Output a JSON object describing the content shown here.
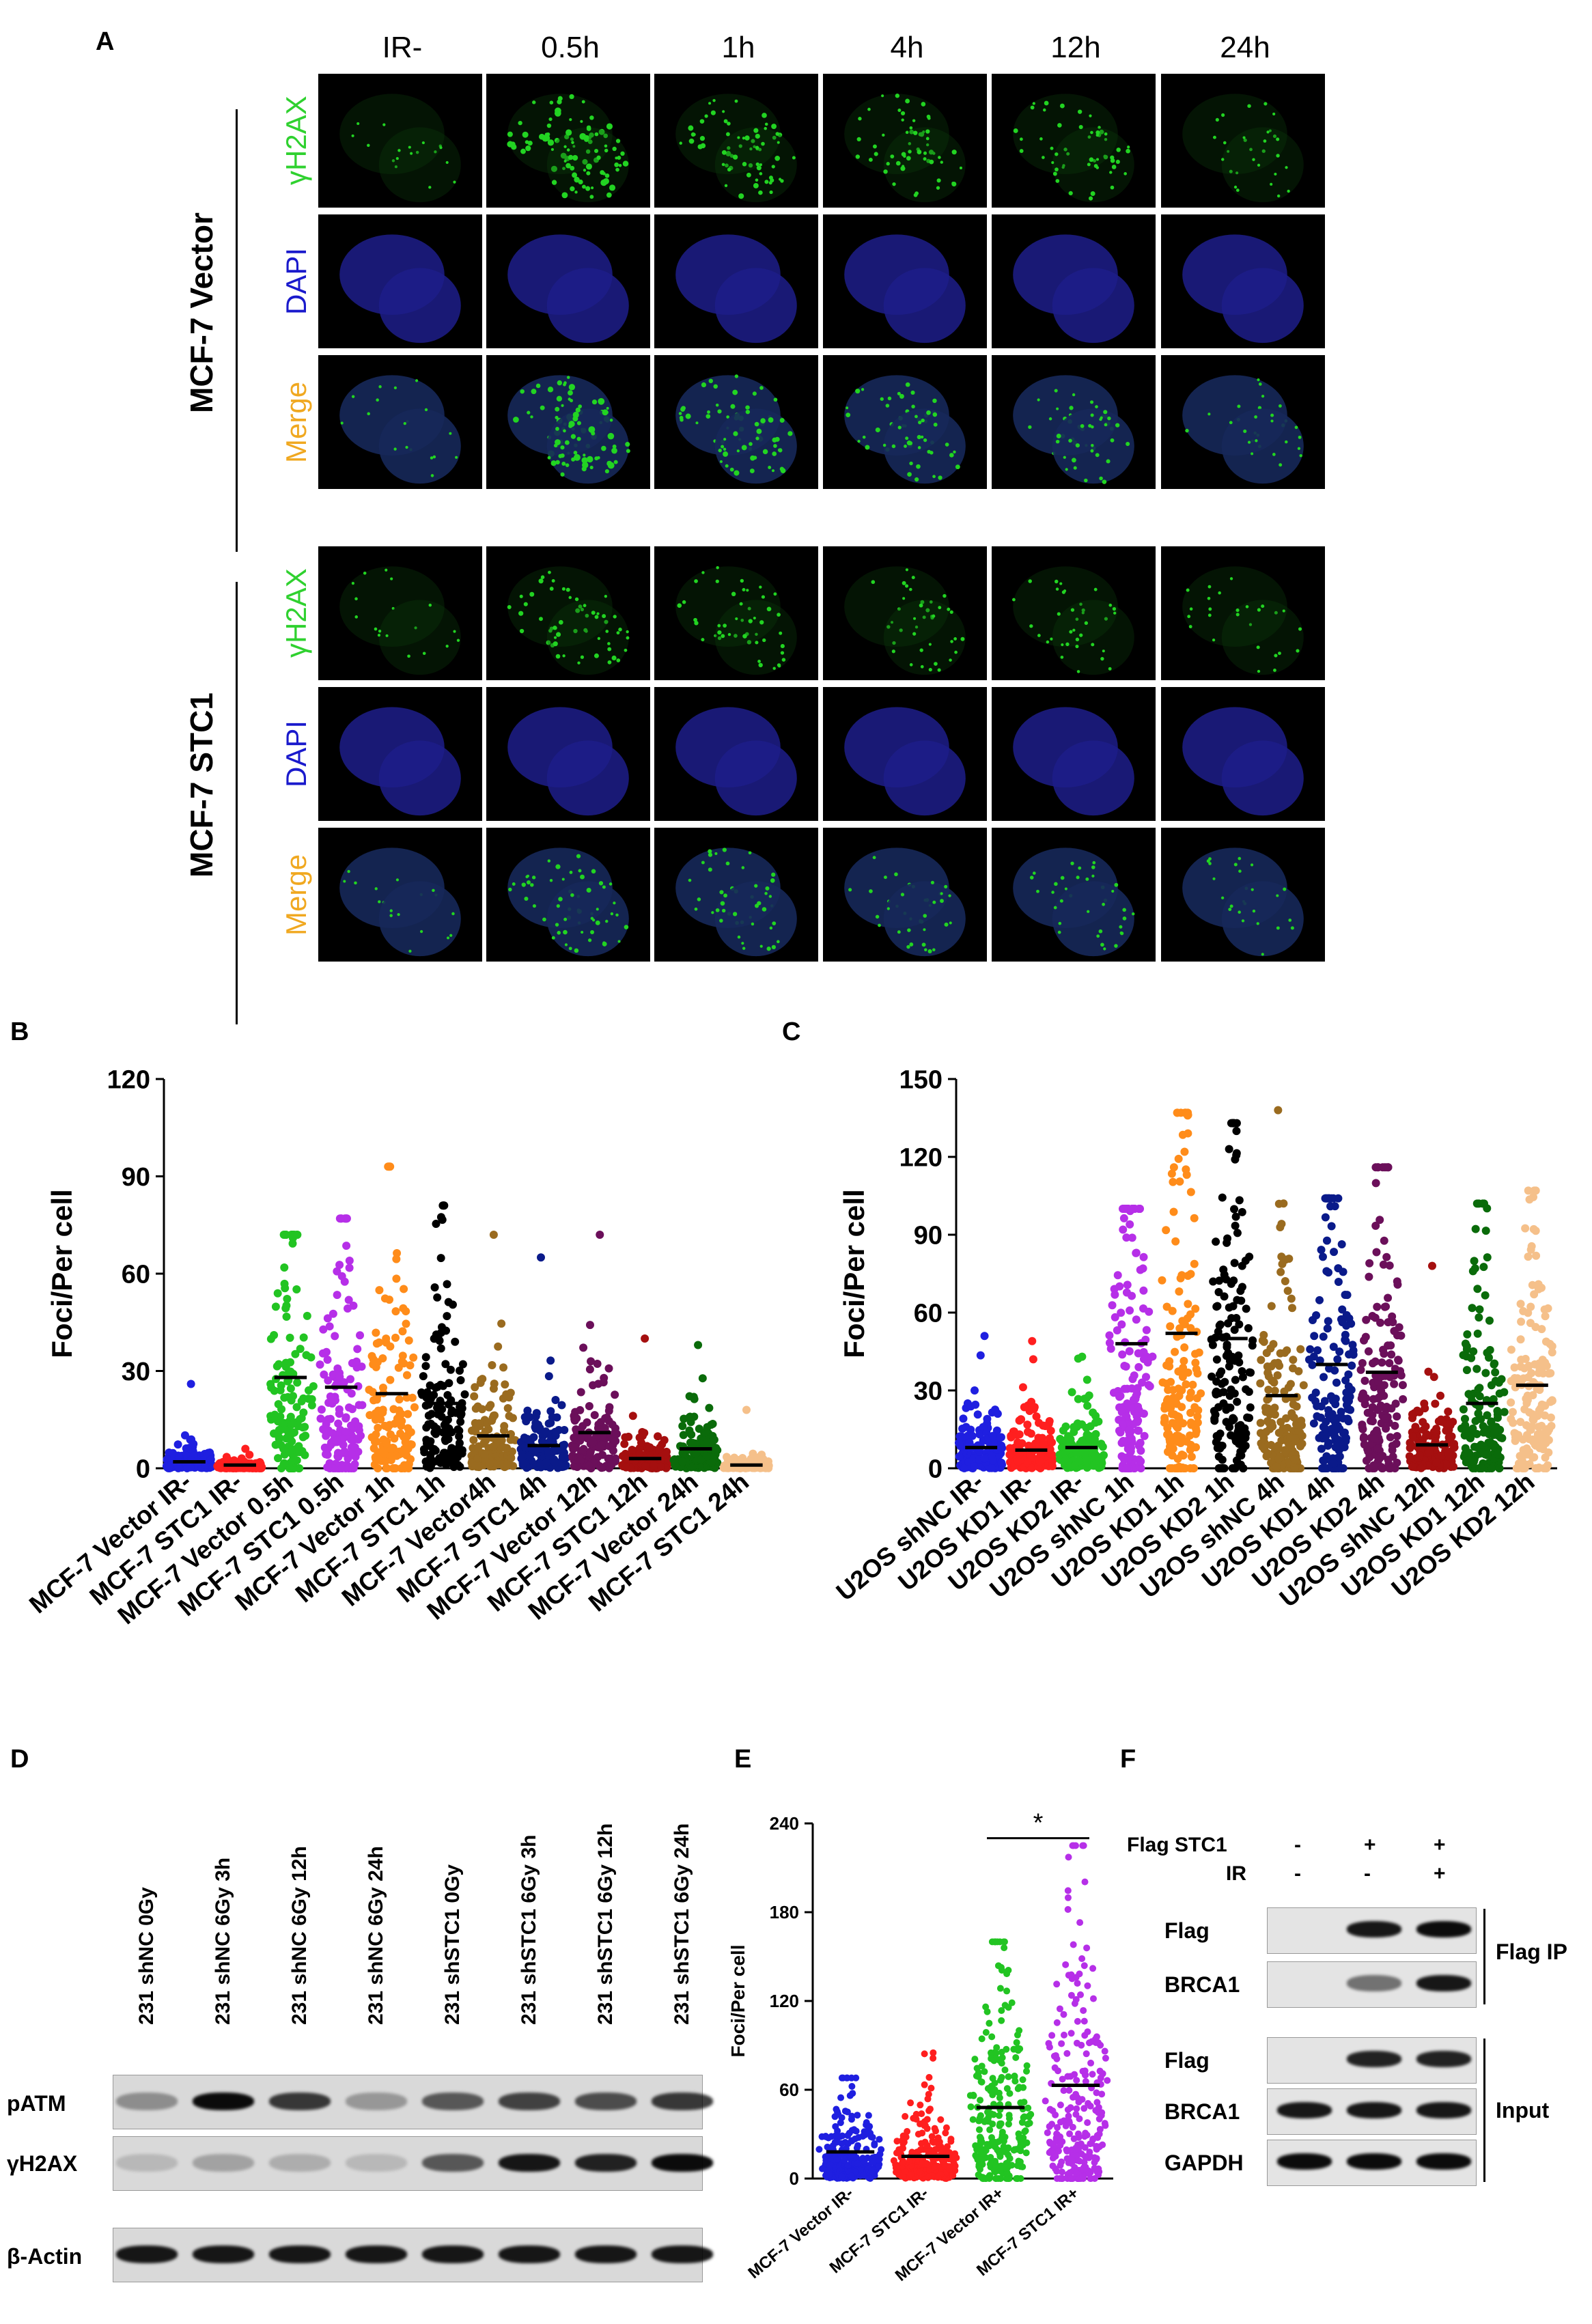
{
  "panel_letters": {
    "a": "A",
    "b": "B",
    "c": "C",
    "d": "D",
    "e": "E",
    "f": "F"
  },
  "panel_a": {
    "columns": [
      "IR-",
      "0.5h",
      "1h",
      "4h",
      "12h",
      "24h"
    ],
    "groups": [
      {
        "name": "MCF-7 Vector",
        "rows": [
          "γH2AX",
          "DAPI",
          "Merge"
        ]
      },
      {
        "name": "MCF-7 STC1",
        "rows": [
          "γH2AX",
          "DAPI",
          "Merge"
        ]
      }
    ],
    "row_colors": {
      "γH2AX": "#2fd12f",
      "DAPI": "#1a1acc",
      "Merge": "#f0a820"
    },
    "cell_colors": {
      "gfp": "#22d422",
      "dapi": "#1d1d8a",
      "bg": "#000000"
    }
  },
  "chart_data": [
    {
      "type": "scatter",
      "panel": "B",
      "ylabel": "Foci/Per cell",
      "ylim": [
        0,
        120
      ],
      "yticks": [
        0,
        30,
        60,
        90,
        120
      ],
      "categories": [
        "MCF-7 Vector IR-",
        "MCF-7 STC1 IR-",
        "MCF-7 Vector 0.5h",
        "MCF-7 STC1 0.5h",
        "MCF-7 Vector 1h",
        "MCF-7 STC1 1h",
        "MCF-7 Vector4h",
        "MCF-7 STC1 4h",
        "MCF-7 Vector 12h",
        "MCF-7 STC1 12h",
        "MCF-7 Vector 24h",
        "MCF-7 STC1 24h"
      ],
      "colors": [
        "#1f1fe0",
        "#ff1f1f",
        "#22c422",
        "#b62fe8",
        "#ff8c1a",
        "#000000",
        "#9a6b1f",
        "#0a1a8a",
        "#6b0f5a",
        "#a50f0f",
        "#0a6b0a",
        "#f5c08a"
      ],
      "means": [
        2,
        1,
        28,
        25,
        23,
        20,
        10,
        7,
        11,
        3,
        6,
        1
      ],
      "maxima": [
        26,
        6,
        72,
        77,
        93,
        81,
        72,
        65,
        72,
        40,
        38,
        18
      ]
    },
    {
      "type": "scatter",
      "panel": "C",
      "ylabel": "Foci/Per cell",
      "ylim": [
        0,
        150
      ],
      "yticks": [
        0,
        30,
        60,
        90,
        120,
        150
      ],
      "categories": [
        "U2OS shNC IR-",
        "U2OS KD1 IR-",
        "U2OS KD2 IR-",
        "U2OS shNC 1h",
        "U2OS KD1 1h",
        "U2OS KD2 1h",
        "U2OS shNC 4h",
        "U2OS KD1 4h",
        "U2OS KD2 4h",
        "U2OS shNC 12h",
        "U2OS KD1 12h",
        "U2OS KD2 12h"
      ],
      "colors": [
        "#1f1fe0",
        "#ff1f1f",
        "#22c422",
        "#b62fe8",
        "#ff8c1a",
        "#000000",
        "#9a6b1f",
        "#0a1a8a",
        "#6b0f5a",
        "#a50f0f",
        "#0a6b0a",
        "#f5c08a"
      ],
      "means": [
        8,
        7,
        8,
        48,
        52,
        50,
        28,
        40,
        37,
        9,
        25,
        32
      ],
      "maxima": [
        51,
        49,
        43,
        100,
        137,
        133,
        138,
        104,
        116,
        78,
        102,
        107
      ]
    },
    {
      "type": "scatter",
      "panel": "E",
      "ylabel": "Foci/Per cell",
      "ylim": [
        0,
        240
      ],
      "yticks": [
        0,
        60,
        120,
        180,
        240
      ],
      "categories": [
        "MCF-7 Vector IR-",
        "MCF-7 STC1 IR-",
        "MCF-7 Vector IR+",
        "MCF-7 STC1 IR+"
      ],
      "colors": [
        "#1f1fe0",
        "#ff1f1f",
        "#22c422",
        "#b62fe8"
      ],
      "means": [
        18,
        15,
        48,
        63
      ],
      "maxima": [
        68,
        85,
        160,
        225
      ],
      "significance": "*"
    }
  ],
  "panel_d": {
    "lanes": [
      "231 shNC 0Gy",
      "231 shNC 6Gy 3h",
      "231 shNC 6Gy 12h",
      "231 shNC 6Gy 24h",
      "231 shSTC1 0Gy",
      "231 shSTC1 6Gy 3h",
      "231 shSTC1 6Gy 12h",
      "231 shSTC1 6Gy 24h"
    ],
    "rows": [
      {
        "label": "pATM",
        "intensity": [
          0.35,
          0.95,
          0.75,
          0.3,
          0.6,
          0.7,
          0.65,
          0.75
        ]
      },
      {
        "label": "γH2AX",
        "intensity": [
          0.15,
          0.25,
          0.2,
          0.15,
          0.6,
          0.9,
          0.85,
          0.95
        ]
      },
      {
        "label": "β-Actin",
        "intensity": [
          0.9,
          0.9,
          0.9,
          0.9,
          0.9,
          0.9,
          0.9,
          0.9
        ]
      }
    ]
  },
  "panel_f": {
    "conditions": [
      {
        "label": "Flag STC1",
        "values": [
          "-",
          "+",
          "+"
        ]
      },
      {
        "label": "IR",
        "values": [
          "-",
          "-",
          "+"
        ]
      }
    ],
    "rows": [
      {
        "label": "Flag",
        "intensity": [
          0,
          0.9,
          0.95
        ]
      },
      {
        "label": "BRCA1",
        "intensity": [
          0,
          0.5,
          0.9
        ]
      },
      {
        "label": "Flag",
        "intensity": [
          0,
          0.85,
          0.85
        ]
      },
      {
        "label": "BRCA1",
        "intensity": [
          0.9,
          0.9,
          0.9
        ]
      },
      {
        "label": "GAPDH",
        "intensity": [
          0.95,
          0.95,
          0.95
        ]
      }
    ],
    "group_labels": {
      "ip": "Flag IP",
      "input": "Input"
    }
  }
}
